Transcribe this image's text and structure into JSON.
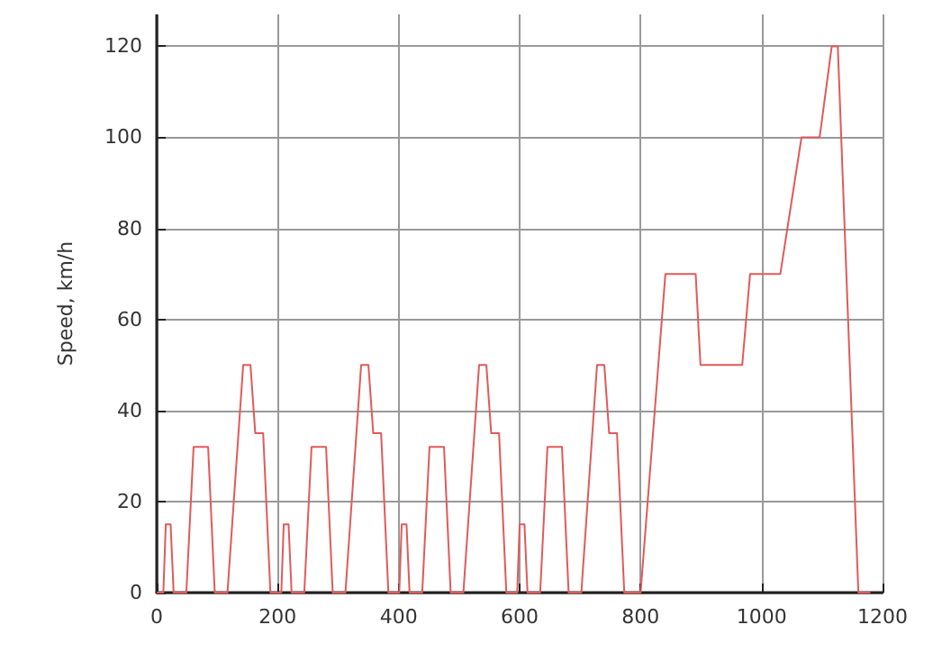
{
  "chart_data": {
    "type": "line",
    "ylabel": "Speed, km/h",
    "x": [
      0,
      11,
      15,
      23,
      28,
      49,
      61,
      85,
      96,
      117,
      143,
      155,
      163,
      176,
      188,
      195,
      206,
      210,
      218,
      223,
      244,
      256,
      280,
      291,
      312,
      338,
      350,
      358,
      371,
      383,
      390,
      401,
      405,
      413,
      418,
      439,
      451,
      475,
      486,
      507,
      533,
      545,
      553,
      566,
      578,
      585,
      596,
      600,
      608,
      613,
      634,
      646,
      670,
      681,
      702,
      728,
      740,
      748,
      761,
      773,
      800,
      841,
      891,
      899,
      968,
      981,
      1031,
      1066,
      1096,
      1116,
      1126,
      1160,
      1180
    ],
    "series": [
      {
        "color": "#e05a5a",
        "values": [
          0,
          0,
          15,
          15,
          0,
          0,
          32,
          32,
          0,
          0,
          50,
          50,
          35,
          35,
          0,
          0,
          0,
          15,
          15,
          0,
          0,
          32,
          32,
          0,
          0,
          50,
          50,
          35,
          35,
          0,
          0,
          0,
          15,
          15,
          0,
          0,
          32,
          32,
          0,
          0,
          50,
          50,
          35,
          35,
          0,
          0,
          0,
          15,
          15,
          0,
          0,
          32,
          32,
          0,
          0,
          50,
          50,
          35,
          35,
          0,
          0,
          70,
          70,
          50,
          50,
          70,
          70,
          100,
          100,
          120,
          120,
          0,
          0
        ]
      }
    ],
    "xlim": [
      0,
      1200
    ],
    "xticks": [
      0,
      200,
      400,
      600,
      800,
      1000,
      1200
    ],
    "ylim": [
      0,
      127
    ],
    "yticks": [
      0,
      20,
      40,
      60,
      80,
      100,
      120
    ],
    "grid": true,
    "marker": "none",
    "line_style": "solid"
  }
}
